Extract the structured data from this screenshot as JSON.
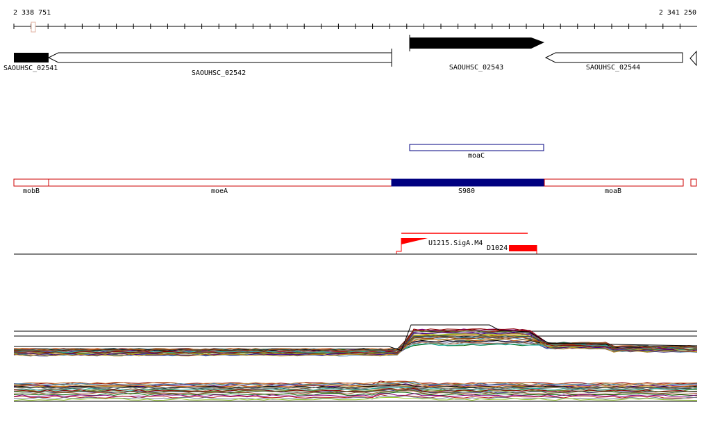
{
  "axis": {
    "start_label": "2 338 751",
    "end_label": "2 341 250"
  },
  "genes": {
    "g1": "SAOUHSC_02541",
    "g2": "SAOUHSC_02542",
    "g3": "SAOUHSC_02543",
    "g4": "SAOUHSC_02544"
  },
  "features": {
    "moaC": "moaC",
    "mobB": "mobB",
    "moeA": "moeA",
    "S980": "S980",
    "moaB": "moaB"
  },
  "promoters": {
    "sigA": "U1215.SigA.M4",
    "d1024": "D1024"
  },
  "colors": {
    "gene_fill": "#000000",
    "operon_outline": "#cc0000",
    "highlight": "#000080",
    "promoter": "#ff0000"
  }
}
